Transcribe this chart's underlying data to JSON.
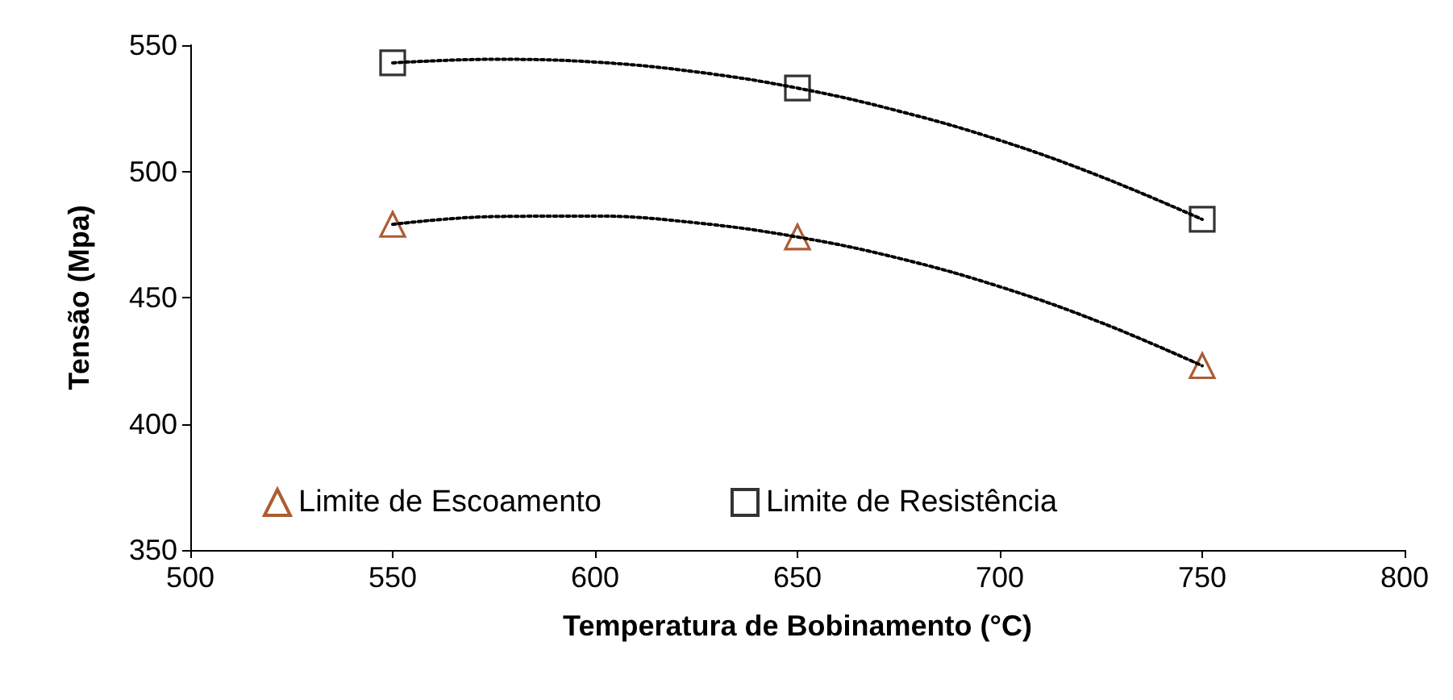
{
  "chart_data": {
    "type": "scatter",
    "xlabel": "Temperatura de Bobinamento (°C)",
    "ylabel": "Tensão (Mpa)",
    "xlim": [
      500,
      800
    ],
    "xticks": [
      500,
      550,
      600,
      650,
      700,
      750,
      800
    ],
    "ylim": [
      350,
      550
    ],
    "yticks": [
      350,
      400,
      450,
      500,
      550
    ],
    "grid": false,
    "legend": "bottom",
    "series": [
      {
        "name": "Limite de Escoamento",
        "marker": "triangle",
        "color": "#993300",
        "x": [
          550,
          650,
          750
        ],
        "values": [
          479,
          474,
          423
        ]
      },
      {
        "name": "Limite de Resistência",
        "marker": "square",
        "color": "#000000",
        "x": [
          550,
          650,
          750
        ],
        "values": [
          543,
          533,
          481
        ]
      },
      {
        "type": "line",
        "marker": "none",
        "line_style": "dotted",
        "color": "#000000",
        "x": [
          550,
          575,
          600,
          625,
          650,
          675,
          700,
          725,
          750
        ],
        "values": [
          479,
          482.1,
          482.3,
          479.6,
          474,
          465.6,
          454.3,
          440.1,
          423
        ]
      },
      {
        "type": "line",
        "marker": "none",
        "line_style": "dotted",
        "color": "#000000",
        "x": [
          550,
          575,
          600,
          625,
          650,
          675,
          700,
          725,
          750
        ],
        "values": [
          543,
          544.4,
          543.3,
          539.4,
          533,
          523.9,
          512.3,
          497.9,
          481
        ]
      }
    ]
  }
}
